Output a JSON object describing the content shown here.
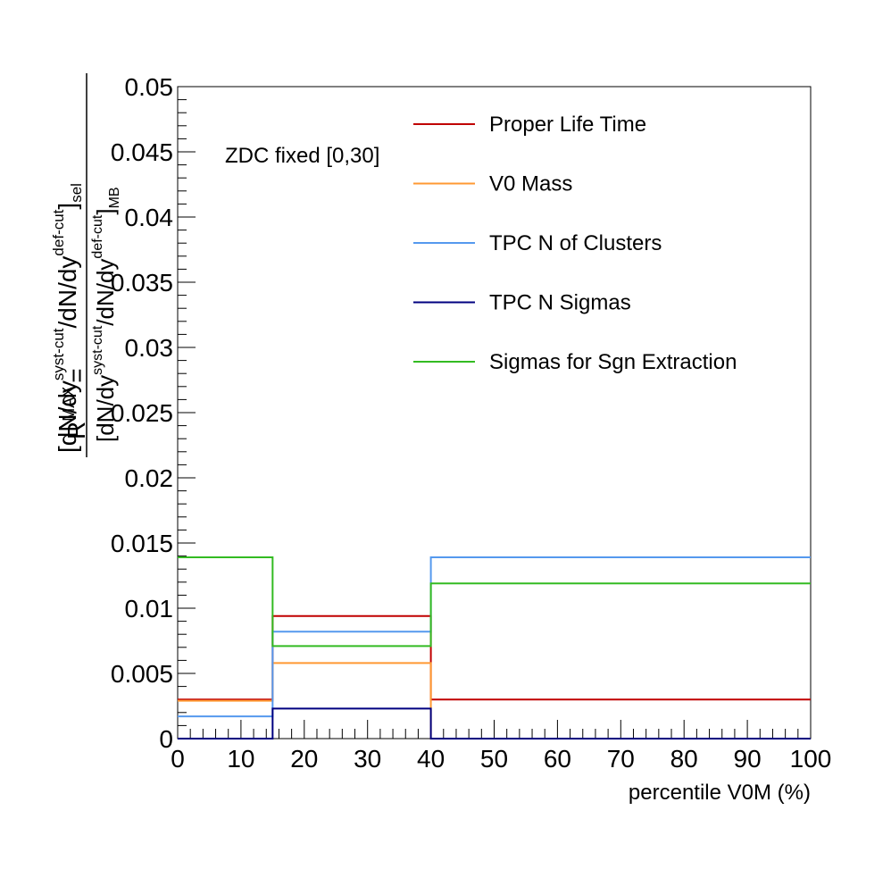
{
  "chart_data": {
    "type": "line",
    "step": true,
    "xlabel": "percentile V0M (%)",
    "ylabel": {
      "lhs_base": "R",
      "lhs_sup": "MAX",
      "equals": "=",
      "num_open": "[dN/dy",
      "num_sup1": "syst-cut",
      "num_mid": "/dN/dy",
      "num_sup2": "def-cut",
      "num_close": "]",
      "num_sub": "sel",
      "den_open": "[dN/dy",
      "den_sup1": "syst-cut",
      "den_mid": "/dN/dy",
      "den_sup2": "def-cut",
      "den_close": "]",
      "den_sub": "MB"
    },
    "annotation": "ZDC fixed [0,30]",
    "xlim": [
      0,
      100
    ],
    "ylim": [
      0,
      0.05
    ],
    "x_ticks": [
      "0",
      "10",
      "20",
      "30",
      "40",
      "50",
      "60",
      "70",
      "80",
      "90",
      "100"
    ],
    "y_ticks": [
      "0",
      "0.005",
      "0.01",
      "0.015",
      "0.02",
      "0.025",
      "0.03",
      "0.035",
      "0.04",
      "0.045",
      "0.05"
    ],
    "bin_edges": [
      0,
      15,
      40,
      100
    ],
    "legend_position": "top-right",
    "series": [
      {
        "name": "Proper Life Time",
        "color": "#c00000",
        "values": [
          0.003,
          0.0094,
          0.003
        ]
      },
      {
        "name": "V0 Mass",
        "color": "#ff9933",
        "values": [
          0.0029,
          0.0058,
          0.0
        ]
      },
      {
        "name": "TPC N of Clusters",
        "color": "#5599ee",
        "values": [
          0.0017,
          0.0082,
          0.0139
        ]
      },
      {
        "name": "TPC N Sigmas",
        "color": "#000080",
        "values": [
          0.0,
          0.0023,
          0.0
        ]
      },
      {
        "name": "Sigmas for Sgn Extraction",
        "color": "#33bb22",
        "values": [
          0.0139,
          0.0071,
          0.0119
        ]
      }
    ]
  }
}
